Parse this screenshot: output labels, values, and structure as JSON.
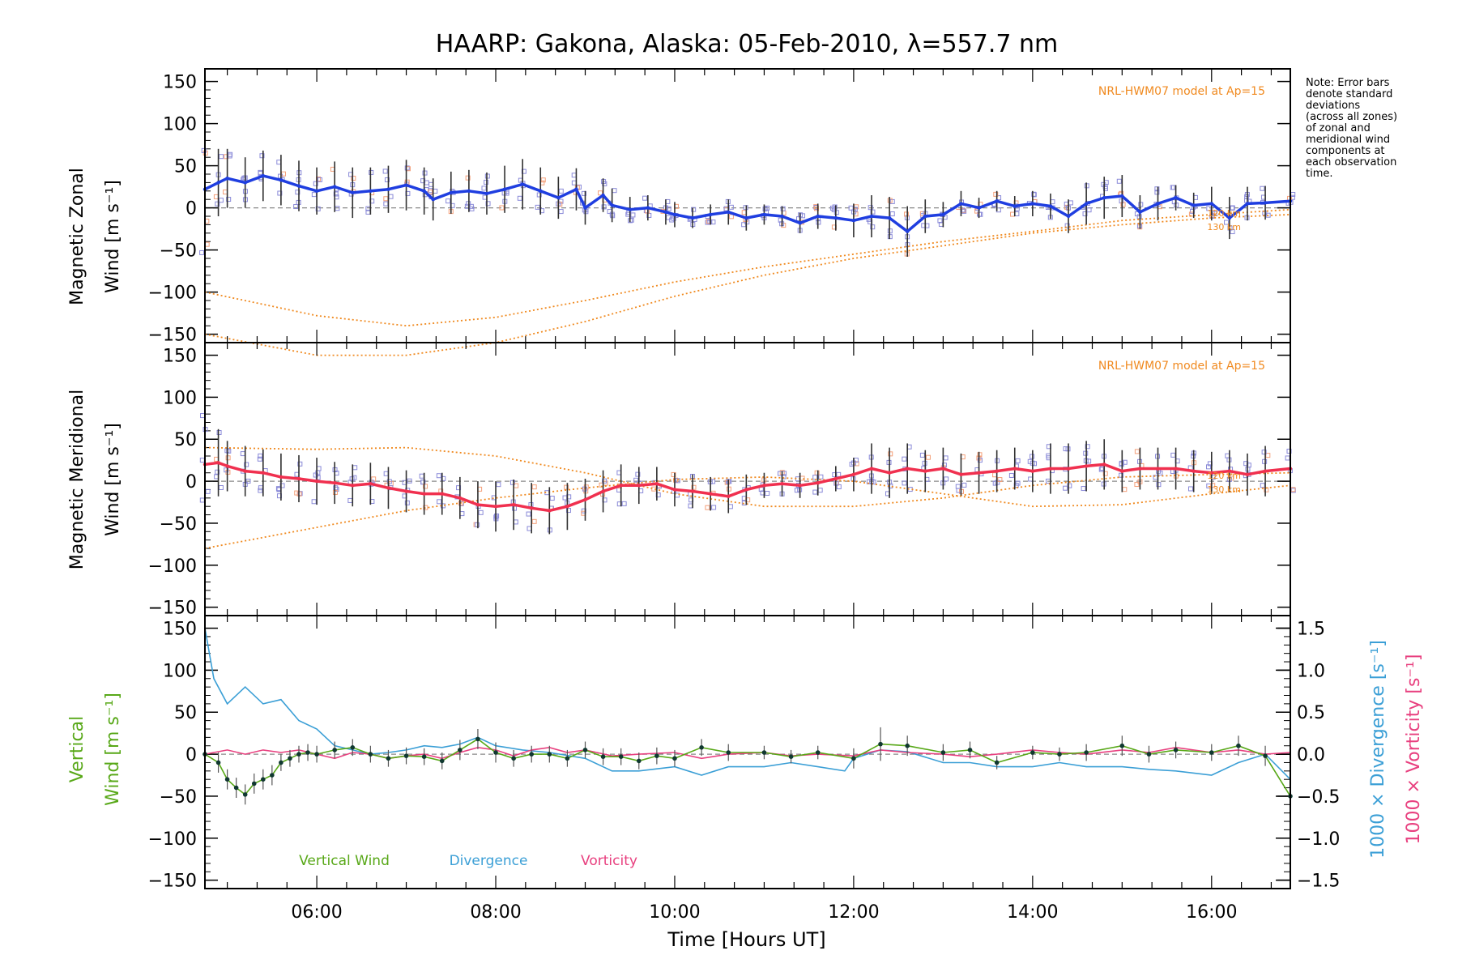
{
  "title": "HAARP: Gakona,  Alaska: 05-Feb-2010, λ=557.7 nm",
  "note_lines": [
    "Note: Error bars",
    "denote standard",
    "deviations",
    "(across all zones)",
    "of zonal and",
    "meridional wind",
    "components at",
    "each observation",
    "time."
  ],
  "colors": {
    "zonal": "#1f3ee0",
    "meridional": "#f0304f",
    "model": "#f08a20",
    "vertical": "#58a818",
    "divergence": "#3b9fd6",
    "vorticity": "#e8407f",
    "samples": "#8a8ad8",
    "errorbar": "#303030"
  },
  "chart_data": [
    {
      "type": "line",
      "panel": "zonal",
      "ylabel_line1": "Magnetic Zonal",
      "ylabel_line2": "Wind",
      "ylabel_units": "[m s⁻¹]",
      "ylim": [
        -160,
        165
      ],
      "yticks": [
        -150,
        -100,
        -50,
        0,
        50,
        100,
        150
      ],
      "xlim": [
        4.75,
        16.88
      ],
      "model_label": "NRL-HWM07 model at Ap=15",
      "model_heights": [
        "120 km",
        "130 km"
      ],
      "series": [
        {
          "role": "measured",
          "x": [
            4.75,
            4.9,
            5.0,
            5.2,
            5.4,
            5.6,
            5.8,
            6.0,
            6.2,
            6.4,
            6.6,
            6.8,
            7.0,
            7.2,
            7.3,
            7.5,
            7.7,
            7.9,
            8.1,
            8.3,
            8.5,
            8.7,
            8.9,
            9.0,
            9.2,
            9.3,
            9.5,
            9.7,
            9.9,
            10.0,
            10.2,
            10.4,
            10.6,
            10.8,
            11.0,
            11.2,
            11.4,
            11.6,
            11.8,
            12.0,
            12.2,
            12.4,
            12.6,
            12.8,
            13.0,
            13.2,
            13.4,
            13.6,
            13.8,
            14.0,
            14.2,
            14.4,
            14.6,
            14.8,
            15.0,
            15.2,
            15.4,
            15.6,
            15.8,
            16.0,
            16.2,
            16.4,
            16.6,
            16.88
          ],
          "y": [
            22,
            30,
            35,
            30,
            38,
            33,
            26,
            20,
            25,
            18,
            20,
            22,
            27,
            20,
            10,
            18,
            20,
            17,
            22,
            28,
            20,
            12,
            22,
            0,
            15,
            3,
            -2,
            0,
            -5,
            -8,
            -12,
            -8,
            -5,
            -12,
            -8,
            -10,
            -18,
            -10,
            -12,
            -15,
            -10,
            -12,
            -28,
            -10,
            -8,
            5,
            0,
            8,
            2,
            5,
            2,
            -10,
            5,
            12,
            14,
            -5,
            5,
            12,
            3,
            5,
            -12,
            5,
            6,
            8
          ],
          "err": [
            90,
            40,
            35,
            30,
            30,
            30,
            30,
            28,
            30,
            30,
            28,
            28,
            30,
            28,
            25,
            25,
            25,
            25,
            28,
            30,
            28,
            25,
            25,
            20,
            20,
            20,
            15,
            15,
            15,
            15,
            12,
            12,
            15,
            15,
            12,
            12,
            12,
            15,
            15,
            20,
            25,
            25,
            30,
            20,
            15,
            15,
            12,
            12,
            12,
            15,
            15,
            20,
            25,
            25,
            25,
            20,
            20,
            15,
            15,
            20,
            25,
            20,
            20,
            20
          ]
        },
        {
          "role": "model",
          "name": "120 km",
          "x": [
            4.75,
            6.0,
            7.0,
            8.0,
            9.0,
            10.0,
            11.0,
            12.0,
            13.0,
            14.0,
            15.0,
            16.0,
            16.88
          ],
          "y": [
            -100,
            -128,
            -140,
            -130,
            -110,
            -88,
            -70,
            -55,
            -40,
            -28,
            -15,
            -8,
            -2
          ]
        },
        {
          "role": "model",
          "name": "130 km",
          "x": [
            4.75,
            6.0,
            7.0,
            8.0,
            9.0,
            10.0,
            11.0,
            12.0,
            13.0,
            14.0,
            15.0,
            16.0,
            16.88
          ],
          "y": [
            -150,
            -175,
            -175,
            -160,
            -135,
            -105,
            -80,
            -60,
            -45,
            -30,
            -20,
            -12,
            -8
          ]
        }
      ]
    },
    {
      "type": "line",
      "panel": "meridional",
      "ylabel_line1": "Magnetic Meridional",
      "ylabel_line2": "Wind",
      "ylabel_units": "[m s⁻¹]",
      "ylim": [
        -160,
        165
      ],
      "yticks": [
        -150,
        -100,
        -50,
        0,
        50,
        100,
        150
      ],
      "xlim": [
        4.75,
        16.88
      ],
      "model_label": "NRL-HWM07 model at Ap=15",
      "model_heights": [
        "120 km",
        "130 km"
      ],
      "series": [
        {
          "role": "measured",
          "x": [
            4.75,
            4.9,
            5.0,
            5.2,
            5.4,
            5.6,
            5.8,
            6.0,
            6.2,
            6.4,
            6.6,
            6.8,
            7.0,
            7.2,
            7.4,
            7.6,
            7.8,
            8.0,
            8.2,
            8.4,
            8.6,
            8.8,
            9.0,
            9.2,
            9.4,
            9.6,
            9.8,
            10.0,
            10.2,
            10.4,
            10.6,
            10.8,
            11.0,
            11.2,
            11.4,
            11.6,
            11.8,
            12.0,
            12.2,
            12.4,
            12.6,
            12.8,
            13.0,
            13.2,
            13.4,
            13.6,
            13.8,
            14.0,
            14.2,
            14.4,
            14.6,
            14.8,
            15.0,
            15.2,
            15.4,
            15.6,
            15.8,
            16.0,
            16.2,
            16.4,
            16.6,
            16.88
          ],
          "y": [
            20,
            22,
            18,
            12,
            10,
            5,
            3,
            0,
            -2,
            -5,
            -3,
            -8,
            -12,
            -15,
            -15,
            -20,
            -28,
            -30,
            -28,
            -32,
            -35,
            -30,
            -22,
            -12,
            -5,
            -5,
            -3,
            -10,
            -12,
            -15,
            -18,
            -10,
            -5,
            -3,
            -5,
            -2,
            3,
            8,
            15,
            10,
            15,
            12,
            15,
            8,
            10,
            12,
            15,
            12,
            15,
            15,
            18,
            20,
            12,
            15,
            15,
            15,
            12,
            10,
            12,
            8,
            12,
            15
          ],
          "err": [
            90,
            40,
            30,
            30,
            28,
            28,
            28,
            28,
            25,
            25,
            25,
            25,
            25,
            25,
            25,
            25,
            28,
            30,
            30,
            30,
            28,
            28,
            25,
            25,
            25,
            22,
            20,
            20,
            20,
            20,
            20,
            18,
            15,
            15,
            15,
            15,
            15,
            20,
            30,
            30,
            30,
            25,
            25,
            25,
            25,
            25,
            25,
            25,
            30,
            30,
            30,
            30,
            25,
            25,
            25,
            25,
            25,
            25,
            25,
            25,
            30,
            30
          ]
        },
        {
          "role": "model",
          "name": "120 km",
          "x": [
            4.75,
            6.0,
            7.0,
            8.0,
            9.0,
            10.0,
            11.0,
            12.0,
            13.0,
            14.0,
            15.0,
            16.0,
            16.88
          ],
          "y": [
            40,
            38,
            40,
            30,
            10,
            -15,
            -30,
            -30,
            -20,
            -5,
            5,
            8,
            10
          ]
        },
        {
          "role": "model",
          "name": "130 km",
          "x": [
            4.75,
            6.0,
            7.0,
            8.0,
            9.0,
            10.0,
            11.0,
            12.0,
            13.0,
            14.0,
            15.0,
            16.0,
            16.88
          ],
          "y": [
            -80,
            -55,
            -35,
            -20,
            -8,
            2,
            5,
            0,
            -15,
            -30,
            -28,
            -15,
            -5
          ]
        }
      ]
    },
    {
      "type": "line",
      "panel": "vertical",
      "ylabel_line1": "Vertical",
      "ylabel_line2": "Wind",
      "ylabel_units": "[m s⁻¹]",
      "ylim": [
        -160,
        165
      ],
      "yticks": [
        -150,
        -100,
        -50,
        0,
        50,
        100,
        150
      ],
      "xlim": [
        4.75,
        16.88
      ],
      "xlabel": "Time [Hours UT]",
      "xtick_values": [
        6,
        8,
        10,
        12,
        14,
        16
      ],
      "xtick_labels": [
        "06:00",
        "08:00",
        "10:00",
        "12:00",
        "14:00",
        "16:00"
      ],
      "y2label_divergence": "1000 × Divergence [s⁻¹]",
      "y2label_vorticity": "1000 × Vorticity [s⁻¹]",
      "y2lim": [
        -1.6,
        1.65
      ],
      "y2ticks": [
        -1.5,
        -1.0,
        -0.5,
        0.0,
        0.5,
        1.0,
        1.5
      ],
      "y2tick_labels": [
        "−1.5",
        "−1.0",
        "−0.5",
        "0.0",
        "0.5",
        "1.0",
        "1.5"
      ],
      "legend": [
        "Vertical Wind",
        "Divergence",
        "Vorticity"
      ],
      "series": [
        {
          "name": "Vertical Wind",
          "axis": "left",
          "x": [
            4.75,
            4.9,
            5.0,
            5.1,
            5.2,
            5.3,
            5.4,
            5.5,
            5.6,
            5.7,
            5.8,
            5.9,
            6.0,
            6.2,
            6.4,
            6.6,
            6.8,
            7.0,
            7.2,
            7.4,
            7.6,
            7.8,
            8.0,
            8.2,
            8.4,
            8.6,
            8.8,
            9.0,
            9.2,
            9.4,
            9.6,
            9.8,
            10.0,
            10.3,
            10.6,
            11.0,
            11.3,
            11.6,
            12.0,
            12.3,
            12.6,
            13.0,
            13.3,
            13.6,
            14.0,
            14.3,
            14.6,
            15.0,
            15.3,
            15.6,
            16.0,
            16.3,
            16.6,
            16.88
          ],
          "y": [
            0,
            -10,
            -30,
            -40,
            -48,
            -35,
            -30,
            -25,
            -10,
            -5,
            0,
            2,
            0,
            5,
            8,
            0,
            -5,
            -2,
            -3,
            -8,
            5,
            18,
            2,
            -5,
            0,
            0,
            -5,
            5,
            -3,
            -3,
            -8,
            -2,
            -5,
            8,
            2,
            2,
            -3,
            2,
            -5,
            12,
            10,
            2,
            5,
            -10,
            2,
            0,
            2,
            10,
            0,
            5,
            2,
            10,
            -2,
            -50
          ],
          "err": [
            15,
            12,
            12,
            12,
            12,
            12,
            12,
            12,
            10,
            10,
            10,
            10,
            10,
            10,
            10,
            10,
            10,
            10,
            10,
            10,
            12,
            12,
            12,
            10,
            10,
            10,
            10,
            10,
            10,
            10,
            10,
            10,
            10,
            10,
            10,
            8,
            8,
            8,
            12,
            20,
            12,
            10,
            10,
            8,
            8,
            8,
            10,
            12,
            10,
            10,
            10,
            12,
            12,
            20
          ]
        },
        {
          "name": "Divergence",
          "axis": "right",
          "x": [
            4.75,
            4.85,
            5.0,
            5.2,
            5.4,
            5.6,
            5.8,
            6.0,
            6.2,
            6.4,
            6.6,
            6.8,
            7.0,
            7.2,
            7.4,
            7.6,
            7.8,
            8.0,
            8.3,
            8.6,
            9.0,
            9.3,
            9.6,
            10.0,
            10.3,
            10.6,
            11.0,
            11.3,
            11.6,
            11.9,
            12.0,
            12.3,
            12.6,
            13.0,
            13.3,
            13.6,
            14.0,
            14.3,
            14.6,
            15.0,
            15.3,
            15.6,
            16.0,
            16.3,
            16.6,
            16.88
          ],
          "y": [
            1.5,
            0.9,
            0.6,
            0.8,
            0.6,
            0.65,
            0.4,
            0.3,
            0.1,
            0.05,
            0.0,
            0.02,
            0.05,
            0.1,
            0.08,
            0.12,
            0.2,
            0.1,
            0.05,
            0.02,
            -0.05,
            -0.2,
            -0.2,
            -0.15,
            -0.25,
            -0.15,
            -0.15,
            -0.1,
            -0.15,
            -0.2,
            -0.05,
            0.05,
            0.03,
            -0.1,
            -0.1,
            -0.15,
            -0.15,
            -0.1,
            -0.15,
            -0.15,
            -0.18,
            -0.2,
            -0.25,
            -0.1,
            0.0,
            -0.3
          ]
        },
        {
          "name": "Vorticity",
          "axis": "right",
          "x": [
            4.75,
            5.0,
            5.2,
            5.4,
            5.6,
            5.8,
            6.0,
            6.2,
            6.4,
            6.6,
            6.8,
            7.0,
            7.2,
            7.4,
            7.6,
            7.8,
            8.0,
            8.2,
            8.4,
            8.6,
            8.8,
            9.0,
            9.3,
            9.6,
            10.0,
            10.3,
            10.6,
            11.0,
            11.3,
            11.6,
            12.0,
            12.3,
            12.6,
            13.0,
            13.3,
            13.6,
            14.0,
            14.3,
            14.6,
            15.0,
            15.3,
            15.6,
            16.0,
            16.3,
            16.6,
            16.88
          ],
          "y": [
            0.0,
            0.05,
            0.0,
            0.05,
            0.02,
            0.05,
            0.0,
            -0.05,
            0.02,
            0.0,
            -0.05,
            -0.02,
            0.0,
            -0.05,
            0.02,
            0.08,
            0.05,
            -0.02,
            0.05,
            0.08,
            0.02,
            0.05,
            -0.02,
            0.0,
            0.02,
            -0.05,
            0.0,
            0.02,
            -0.02,
            0.0,
            -0.02,
            0.05,
            0.02,
            0.0,
            -0.03,
            0.0,
            0.05,
            0.02,
            0.0,
            0.05,
            0.02,
            0.08,
            0.02,
            0.05,
            0.0,
            0.02
          ]
        }
      ]
    }
  ]
}
